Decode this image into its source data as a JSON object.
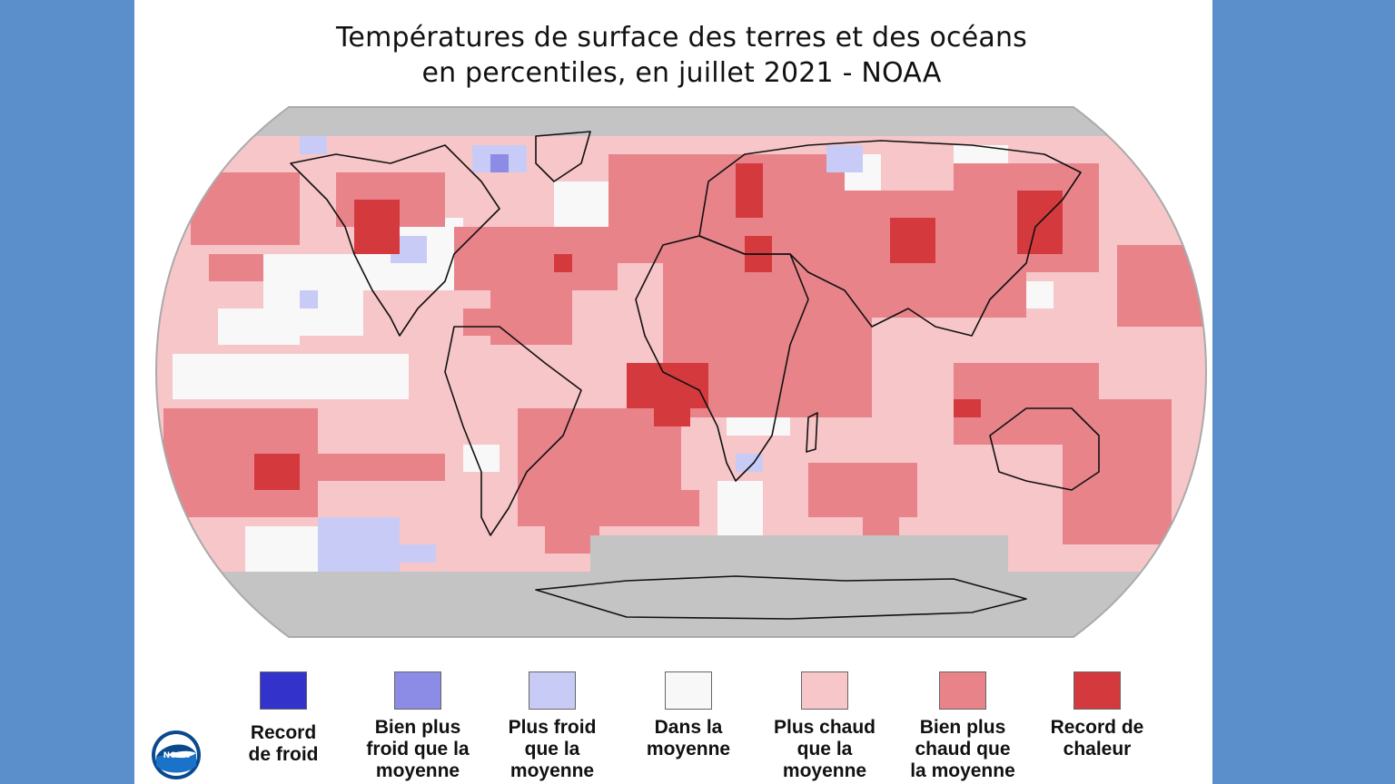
{
  "title": {
    "line1": "Températures de surface des terres et des océans",
    "line2": "en percentiles, en juillet 2021 - NOAA"
  },
  "logo": {
    "icon": "noaa-logo-icon",
    "text": "NOAA"
  },
  "legend": [
    {
      "lines": [
        "Record",
        "de froid"
      ],
      "color": "#3333cc"
    },
    {
      "lines": [
        "Bien plus",
        "froid que la",
        "moyenne"
      ],
      "color": "#8c8ce6"
    },
    {
      "lines": [
        "Plus froid",
        "que la",
        "moyenne"
      ],
      "color": "#c8cbf5"
    },
    {
      "lines": [
        "Dans la",
        "moyenne"
      ],
      "color": "#f8f8f8"
    },
    {
      "lines": [
        "Plus chaud",
        "que la",
        "moyenne"
      ],
      "color": "#f7c6c9"
    },
    {
      "lines": [
        "Bien plus",
        "chaud que",
        "la moyenne"
      ],
      "color": "#e8838a"
    },
    {
      "lines": [
        "Record de",
        "chaleur"
      ],
      "color": "#d43a3d"
    }
  ],
  "map": {
    "projection": "robinson",
    "no_data_color": "#c4c4c4",
    "continent_outline_color": "#111111"
  }
}
